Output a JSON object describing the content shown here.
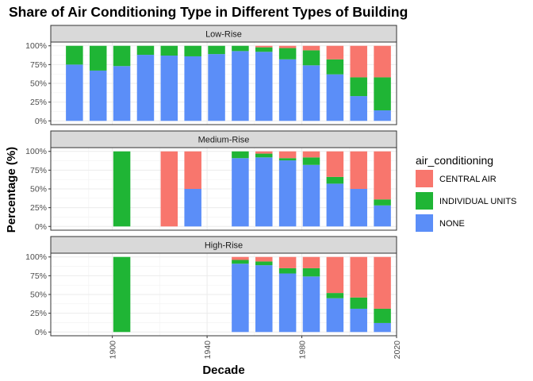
{
  "chart_data": {
    "type": "bar",
    "stacked": true,
    "percent": true,
    "title": "Share of Air Conditioning Type in Different Types of Building",
    "xlabel": "Decade",
    "ylabel": "Percentage (%)",
    "x_ticks": [
      1900,
      1940,
      1980,
      2020
    ],
    "x_tick_labels": [
      "1900",
      "1940",
      "1980",
      "2020"
    ],
    "xlim": [
      1874,
      2020
    ],
    "y_ticks": [
      0,
      0.25,
      0.5,
      0.75,
      1
    ],
    "y_tick_labels": [
      "0%",
      "25%",
      "50%",
      "75%",
      "100%"
    ],
    "ylim": [
      -0.05,
      1.05
    ],
    "grid": true,
    "legend": {
      "title": "air_conditioning",
      "position": "right",
      "entries": [
        "CENTRAL AIR",
        "INDIVIDUAL UNITS",
        "NONE"
      ],
      "colors": [
        "#F8766D",
        "#1FB535",
        "#5B8EF8"
      ]
    },
    "stack_order_bottom_to_top": [
      "NONE",
      "INDIVIDUAL UNITS",
      "CENTRAL AIR"
    ],
    "bar_width": 7.2,
    "panels": [
      {
        "label": "Low-Rise",
        "bars": [
          {
            "x": 1884,
            "none": 0.75,
            "individual": 0.25,
            "central": 0.0
          },
          {
            "x": 1894,
            "none": 0.67,
            "individual": 0.33,
            "central": 0.0
          },
          {
            "x": 1904,
            "none": 0.73,
            "individual": 0.27,
            "central": 0.0
          },
          {
            "x": 1914,
            "none": 0.88,
            "individual": 0.12,
            "central": 0.0
          },
          {
            "x": 1924,
            "none": 0.87,
            "individual": 0.13,
            "central": 0.0
          },
          {
            "x": 1934,
            "none": 0.86,
            "individual": 0.14,
            "central": 0.0
          },
          {
            "x": 1944,
            "none": 0.89,
            "individual": 0.11,
            "central": 0.0
          },
          {
            "x": 1954,
            "none": 0.93,
            "individual": 0.07,
            "central": 0.0
          },
          {
            "x": 1964,
            "none": 0.92,
            "individual": 0.06,
            "central": 0.02
          },
          {
            "x": 1974,
            "none": 0.82,
            "individual": 0.15,
            "central": 0.03
          },
          {
            "x": 1984,
            "none": 0.74,
            "individual": 0.2,
            "central": 0.06
          },
          {
            "x": 1994,
            "none": 0.62,
            "individual": 0.2,
            "central": 0.18
          },
          {
            "x": 2004,
            "none": 0.33,
            "individual": 0.25,
            "central": 0.42
          },
          {
            "x": 2014,
            "none": 0.14,
            "individual": 0.44,
            "central": 0.42
          }
        ]
      },
      {
        "label": "Medium-Rise",
        "bars": [
          {
            "x": 1904,
            "none": 0.0,
            "individual": 1.0,
            "central": 0.0
          },
          {
            "x": 1924,
            "none": 0.0,
            "individual": 0.0,
            "central": 1.0
          },
          {
            "x": 1934,
            "none": 0.5,
            "individual": 0.0,
            "central": 0.5
          },
          {
            "x": 1954,
            "none": 0.91,
            "individual": 0.09,
            "central": 0.0
          },
          {
            "x": 1964,
            "none": 0.92,
            "individual": 0.05,
            "central": 0.03
          },
          {
            "x": 1974,
            "none": 0.88,
            "individual": 0.03,
            "central": 0.09
          },
          {
            "x": 1984,
            "none": 0.82,
            "individual": 0.1,
            "central": 0.08
          },
          {
            "x": 1994,
            "none": 0.57,
            "individual": 0.09,
            "central": 0.34
          },
          {
            "x": 2004,
            "none": 0.5,
            "individual": 0.0,
            "central": 0.5
          },
          {
            "x": 2014,
            "none": 0.28,
            "individual": 0.08,
            "central": 0.64
          }
        ]
      },
      {
        "label": "High-Rise",
        "bars": [
          {
            "x": 1904,
            "none": 0.0,
            "individual": 1.0,
            "central": 0.0
          },
          {
            "x": 1954,
            "none": 0.91,
            "individual": 0.05,
            "central": 0.04
          },
          {
            "x": 1964,
            "none": 0.89,
            "individual": 0.05,
            "central": 0.06
          },
          {
            "x": 1974,
            "none": 0.78,
            "individual": 0.07,
            "central": 0.15
          },
          {
            "x": 1984,
            "none": 0.74,
            "individual": 0.11,
            "central": 0.15
          },
          {
            "x": 1994,
            "none": 0.45,
            "individual": 0.07,
            "central": 0.48
          },
          {
            "x": 2004,
            "none": 0.31,
            "individual": 0.15,
            "central": 0.54
          },
          {
            "x": 2014,
            "none": 0.12,
            "individual": 0.19,
            "central": 0.69
          }
        ]
      }
    ]
  }
}
